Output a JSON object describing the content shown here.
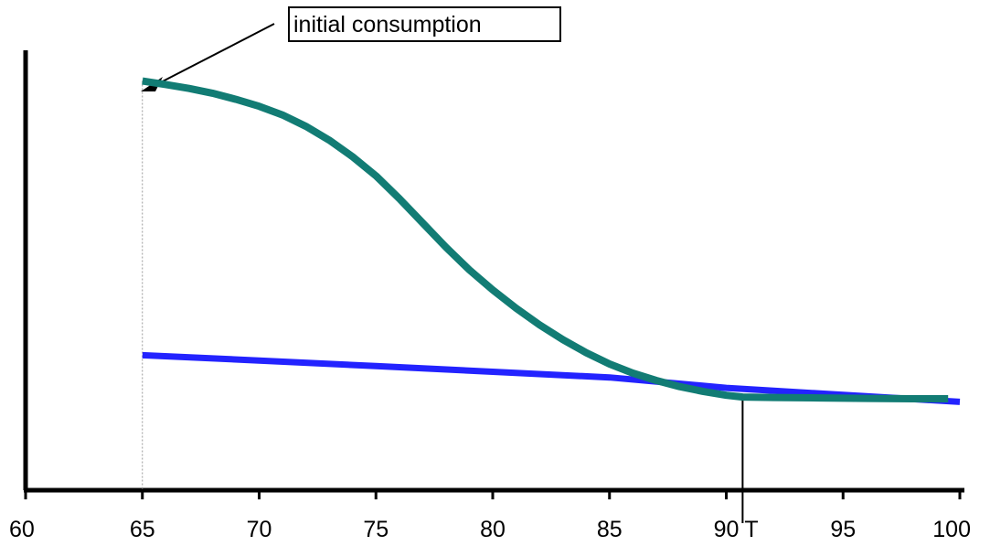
{
  "chart_data": {
    "type": "line",
    "title": "",
    "xlabel": "",
    "ylabel": "",
    "xlim": [
      60,
      100
    ],
    "ylim": [
      0,
      100
    ],
    "grid": false,
    "x_ticks": [
      {
        "value": 60,
        "label": "60"
      },
      {
        "value": 65,
        "label": "65"
      },
      {
        "value": 70,
        "label": "70"
      },
      {
        "value": 75,
        "label": "75"
      },
      {
        "value": 80,
        "label": "80"
      },
      {
        "value": 85,
        "label": "85"
      },
      {
        "value": 90,
        "label": "90"
      },
      {
        "value": 95,
        "label": "95"
      },
      {
        "value": 100,
        "label": "100"
      }
    ],
    "marker": {
      "x": 90.7,
      "label": "T",
      "color": "#ff2a00"
    },
    "annotation": {
      "text": "initial consumption",
      "x": 65,
      "y": 94
    },
    "series": [
      {
        "color": "#127c74",
        "x": [
          65,
          66,
          67,
          68,
          69,
          70,
          71,
          72,
          73,
          74,
          75,
          76,
          77,
          78,
          79,
          80,
          81,
          82,
          83,
          84,
          85,
          86,
          87,
          88,
          89,
          90,
          90.7,
          92,
          94,
          96,
          98,
          99.5
        ],
        "y": [
          94,
          93.2,
          92.3,
          91.2,
          89.8,
          88.2,
          86.2,
          83.6,
          80.4,
          76.6,
          72.2,
          67,
          61.4,
          55.8,
          50.6,
          46,
          41.8,
          38,
          34.6,
          31.6,
          29,
          26.9,
          25.2,
          23.8,
          22.7,
          21.8,
          21.4,
          21.3,
          21.2,
          21.1,
          21,
          21
        ]
      },
      {
        "color": "#2323ff",
        "x": [
          65,
          70,
          75,
          80,
          85,
          90,
          95,
          100
        ],
        "y": [
          31,
          29.8,
          28.5,
          27.2,
          25.9,
          23.5,
          21.9,
          20.3
        ]
      }
    ]
  }
}
